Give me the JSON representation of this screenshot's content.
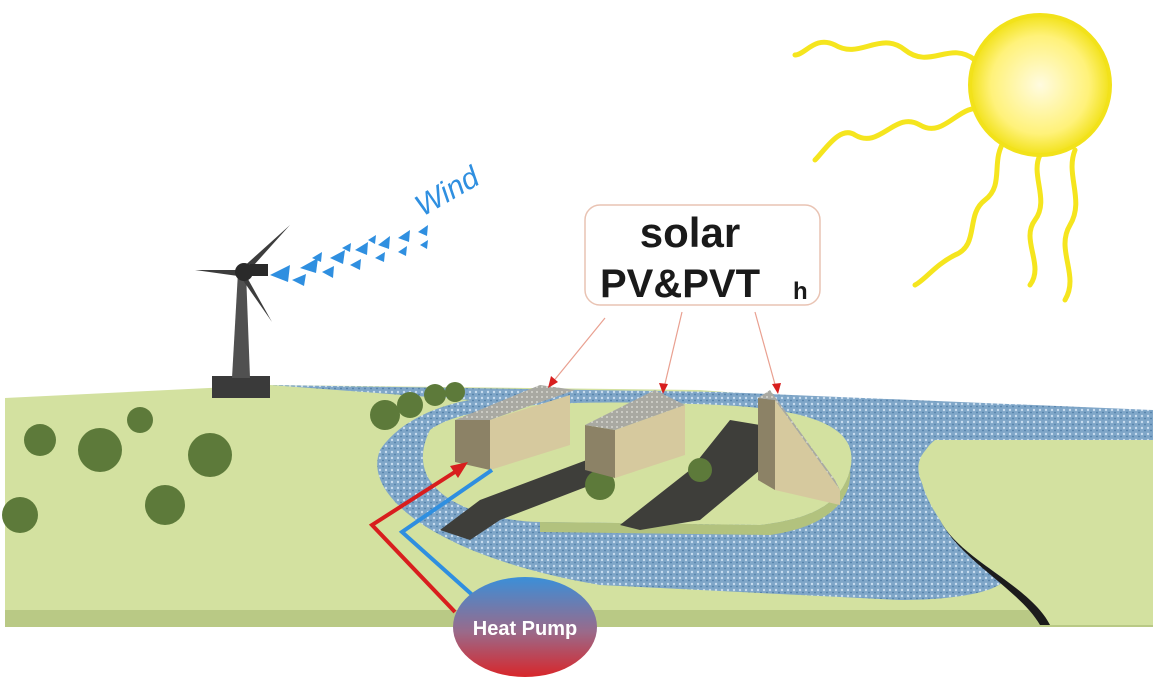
{
  "labels": {
    "wind": "Wind",
    "solar_title": "solar",
    "solar_subtitle": "PV&PVT",
    "solar_suffix": "h",
    "heat_pump": "Heat Pump"
  }
}
